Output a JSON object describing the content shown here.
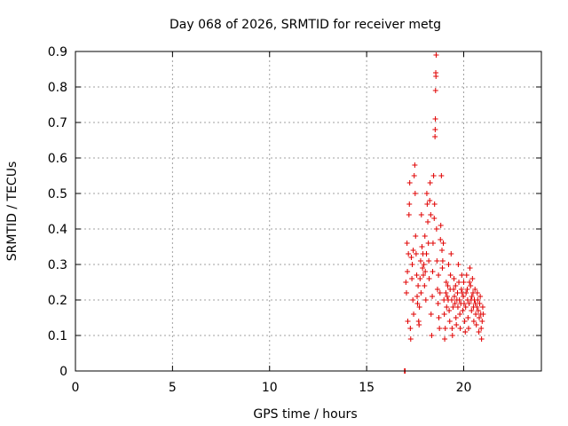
{
  "chart_data": {
    "type": "scatter",
    "title": "Day 068 of 2026, SRMTID for receiver metg",
    "xlabel": "GPS time / hours",
    "ylabel": "SRMTID / TECUs",
    "xlim": [
      0,
      24
    ],
    "ylim": [
      0,
      0.9
    ],
    "x_ticks": [
      0,
      5,
      10,
      15,
      20
    ],
    "x_tick_labels": [
      "0",
      "5",
      "10",
      "15",
      "20"
    ],
    "y_ticks": [
      0,
      0.1,
      0.2,
      0.3,
      0.4,
      0.5,
      0.6,
      0.7,
      0.8,
      0.9
    ],
    "y_tick_labels": [
      "0",
      "0.1",
      "0.2",
      "0.3",
      "0.4",
      "0.5",
      "0.6",
      "0.7",
      "0.8",
      "0.9"
    ],
    "grid": true,
    "series": [
      {
        "name": "SRMTID",
        "color": "#e00000",
        "marker": "plus",
        "points": [
          [
            16.95,
            0.0
          ],
          [
            16.98,
            0.0
          ],
          [
            17.02,
            0.25
          ],
          [
            17.05,
            0.22
          ],
          [
            17.08,
            0.36
          ],
          [
            17.1,
            0.28
          ],
          [
            17.12,
            0.14
          ],
          [
            17.15,
            0.33
          ],
          [
            17.18,
            0.44
          ],
          [
            17.2,
            0.47
          ],
          [
            17.22,
            0.53
          ],
          [
            17.25,
            0.12
          ],
          [
            17.27,
            0.09
          ],
          [
            17.3,
            0.32
          ],
          [
            17.33,
            0.26
          ],
          [
            17.35,
            0.3
          ],
          [
            17.38,
            0.2
          ],
          [
            17.4,
            0.34
          ],
          [
            17.42,
            0.16
          ],
          [
            17.45,
            0.55
          ],
          [
            17.48,
            0.58
          ],
          [
            17.5,
            0.5
          ],
          [
            17.52,
            0.38
          ],
          [
            17.55,
            0.33
          ],
          [
            17.58,
            0.27
          ],
          [
            17.6,
            0.21
          ],
          [
            17.62,
            0.19
          ],
          [
            17.65,
            0.24
          ],
          [
            17.68,
            0.14
          ],
          [
            17.7,
            0.13
          ],
          [
            17.72,
            0.18
          ],
          [
            17.75,
            0.26
          ],
          [
            17.78,
            0.31
          ],
          [
            17.8,
            0.22
          ],
          [
            17.82,
            0.44
          ],
          [
            17.85,
            0.35
          ],
          [
            17.88,
            0.29
          ],
          [
            17.9,
            0.33
          ],
          [
            17.92,
            0.27
          ],
          [
            17.95,
            0.3
          ],
          [
            17.98,
            0.24
          ],
          [
            18.0,
            0.38
          ],
          [
            18.02,
            0.28
          ],
          [
            18.05,
            0.2
          ],
          [
            18.08,
            0.33
          ],
          [
            18.1,
            0.5
          ],
          [
            18.12,
            0.47
          ],
          [
            18.15,
            0.42
          ],
          [
            18.18,
            0.36
          ],
          [
            18.2,
            0.31
          ],
          [
            18.22,
            0.26
          ],
          [
            18.25,
            0.48
          ],
          [
            18.27,
            0.53
          ],
          [
            18.3,
            0.44
          ],
          [
            18.32,
            0.16
          ],
          [
            18.35,
            0.1
          ],
          [
            18.38,
            0.21
          ],
          [
            18.4,
            0.28
          ],
          [
            18.42,
            0.36
          ],
          [
            18.45,
            0.55
          ],
          [
            18.48,
            0.43
          ],
          [
            18.5,
            0.47
          ],
          [
            18.52,
            0.66
          ],
          [
            18.53,
            0.68
          ],
          [
            18.54,
            0.71
          ],
          [
            18.55,
            0.79
          ],
          [
            18.56,
            0.84
          ],
          [
            18.57,
            0.83
          ],
          [
            18.58,
            0.89
          ],
          [
            18.6,
            0.4
          ],
          [
            18.62,
            0.31
          ],
          [
            18.65,
            0.23
          ],
          [
            18.68,
            0.19
          ],
          [
            18.7,
            0.27
          ],
          [
            18.72,
            0.15
          ],
          [
            18.75,
            0.12
          ],
          [
            18.78,
            0.22
          ],
          [
            18.8,
            0.37
          ],
          [
            18.82,
            0.41
          ],
          [
            18.85,
            0.55
          ],
          [
            18.88,
            0.34
          ],
          [
            18.9,
            0.29
          ],
          [
            18.92,
            0.31
          ],
          [
            18.95,
            0.36
          ],
          [
            18.98,
            0.2
          ],
          [
            19.0,
            0.16
          ],
          [
            19.02,
            0.09
          ],
          [
            19.05,
            0.12
          ],
          [
            19.08,
            0.22
          ],
          [
            19.1,
            0.25
          ],
          [
            19.12,
            0.18
          ],
          [
            19.15,
            0.21
          ],
          [
            19.18,
            0.24
          ],
          [
            19.2,
            0.2
          ],
          [
            19.22,
            0.3
          ],
          [
            19.25,
            0.17
          ],
          [
            19.28,
            0.14
          ],
          [
            19.3,
            0.23
          ],
          [
            19.32,
            0.27
          ],
          [
            19.35,
            0.33
          ],
          [
            19.38,
            0.2
          ],
          [
            19.4,
            0.12
          ],
          [
            19.42,
            0.1
          ],
          [
            19.45,
            0.18
          ],
          [
            19.48,
            0.23
          ],
          [
            19.5,
            0.26
          ],
          [
            19.52,
            0.21
          ],
          [
            19.55,
            0.19
          ],
          [
            19.58,
            0.24
          ],
          [
            19.6,
            0.15
          ],
          [
            19.62,
            0.13
          ],
          [
            19.65,
            0.2
          ],
          [
            19.68,
            0.22
          ],
          [
            19.7,
            0.18
          ],
          [
            19.72,
            0.3
          ],
          [
            19.75,
            0.25
          ],
          [
            19.78,
            0.2
          ],
          [
            19.8,
            0.16
          ],
          [
            19.82,
            0.12
          ],
          [
            19.85,
            0.19
          ],
          [
            19.88,
            0.23
          ],
          [
            19.9,
            0.27
          ],
          [
            19.92,
            0.22
          ],
          [
            19.95,
            0.17
          ],
          [
            19.98,
            0.21
          ],
          [
            20.0,
            0.25
          ],
          [
            20.02,
            0.19
          ],
          [
            20.05,
            0.14
          ],
          [
            20.08,
            0.11
          ],
          [
            20.1,
            0.18
          ],
          [
            20.12,
            0.22
          ],
          [
            20.15,
            0.27
          ],
          [
            20.18,
            0.23
          ],
          [
            20.2,
            0.2
          ],
          [
            20.22,
            0.15
          ],
          [
            20.25,
            0.12
          ],
          [
            20.28,
            0.19
          ],
          [
            20.3,
            0.25
          ],
          [
            20.32,
            0.29
          ],
          [
            20.35,
            0.24
          ],
          [
            20.38,
            0.2
          ],
          [
            20.4,
            0.17
          ],
          [
            20.42,
            0.21
          ],
          [
            20.45,
            0.26
          ],
          [
            20.48,
            0.22
          ],
          [
            20.5,
            0.18
          ],
          [
            20.52,
            0.14
          ],
          [
            20.55,
            0.2
          ],
          [
            20.58,
            0.23
          ],
          [
            20.6,
            0.19
          ],
          [
            20.62,
            0.16
          ],
          [
            20.65,
            0.13
          ],
          [
            20.68,
            0.18
          ],
          [
            20.7,
            0.22
          ],
          [
            20.72,
            0.2
          ],
          [
            20.75,
            0.17
          ],
          [
            20.78,
            0.11
          ],
          [
            20.8,
            0.15
          ],
          [
            20.82,
            0.19
          ],
          [
            20.85,
            0.21
          ],
          [
            20.88,
            0.16
          ],
          [
            20.9,
            0.12
          ],
          [
            20.92,
            0.09
          ],
          [
            20.95,
            0.14
          ],
          [
            20.98,
            0.18
          ],
          [
            21.0,
            0.16
          ]
        ]
      }
    ]
  }
}
